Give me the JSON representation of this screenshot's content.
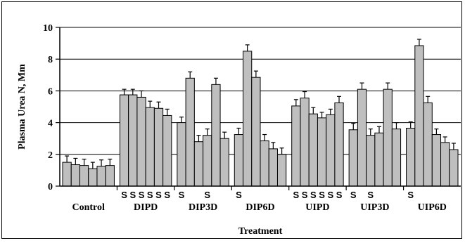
{
  "chart_data": {
    "type": "bar",
    "xlabel": "Treatment",
    "ylabel": "Plasma Urea N, Mm",
    "ylim": [
      0,
      10
    ],
    "yticks": [
      "0",
      "2",
      "4",
      "6",
      "8",
      "10"
    ],
    "bar_color": "#bfbfbf",
    "groups": [
      {
        "label": "Control",
        "values": [
          1.5,
          1.35,
          1.3,
          1.1,
          1.25,
          1.3
        ],
        "errors": [
          0.4,
          0.4,
          0.4,
          0.4,
          0.4,
          0.4
        ],
        "sig": [
          "",
          "",
          "",
          "",
          "",
          ""
        ]
      },
      {
        "label": "DIPD",
        "values": [
          5.75,
          5.75,
          5.6,
          4.95,
          4.9,
          4.45
        ],
        "errors": [
          0.35,
          0.35,
          0.4,
          0.4,
          0.4,
          0.4
        ],
        "sig": [
          "S",
          "S",
          "S",
          "S",
          "S",
          "S"
        ]
      },
      {
        "label": "DIP3D",
        "values": [
          4.0,
          6.8,
          2.8,
          3.2,
          6.4,
          3.0
        ],
        "errors": [
          0.35,
          0.4,
          0.4,
          0.4,
          0.4,
          0.4
        ],
        "sig": [
          "S",
          "",
          "",
          "S",
          "",
          ""
        ]
      },
      {
        "label": "DIP6D",
        "values": [
          3.25,
          8.5,
          6.85,
          2.85,
          2.35,
          2.0
        ],
        "errors": [
          0.4,
          0.4,
          0.4,
          0.4,
          0.4,
          0.4
        ],
        "sig": [
          "S",
          "",
          "",
          "",
          "",
          ""
        ]
      },
      {
        "label": "UIPD",
        "values": [
          5.05,
          5.55,
          4.55,
          4.3,
          4.5,
          5.25
        ],
        "errors": [
          0.4,
          0.4,
          0.4,
          0.35,
          0.35,
          0.4
        ],
        "sig": [
          "S",
          "S",
          "S",
          "S",
          "S",
          "S"
        ]
      },
      {
        "label": "UIP3D",
        "values": [
          3.55,
          6.1,
          3.2,
          3.35,
          6.1,
          3.6
        ],
        "errors": [
          0.4,
          0.4,
          0.4,
          0.4,
          0.4,
          0.4
        ],
        "sig": [
          "S",
          "",
          "S",
          "",
          "",
          ""
        ]
      },
      {
        "label": "UIP6D",
        "values": [
          3.65,
          8.85,
          5.25,
          3.25,
          2.75,
          2.3
        ],
        "errors": [
          0.4,
          0.4,
          0.4,
          0.35,
          0.35,
          0.4
        ],
        "sig": [
          "S",
          "",
          "",
          "",
          "",
          ""
        ]
      }
    ]
  }
}
